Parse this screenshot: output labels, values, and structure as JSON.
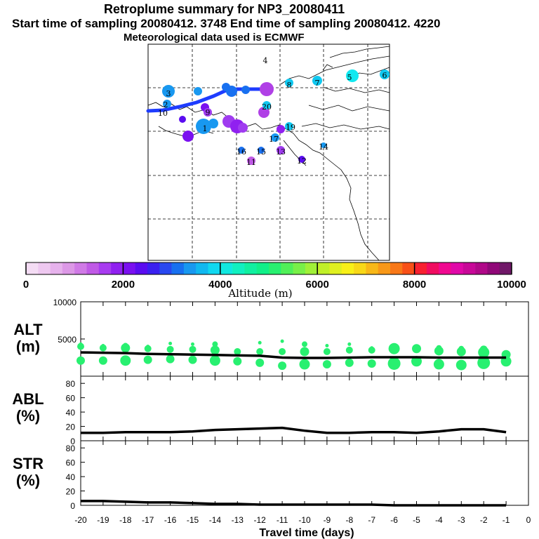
{
  "header": {
    "title": "Retroplume summary for NP3_20080411",
    "sampling_line": "Start time of sampling 20080412.  3748     End time of sampling 20080412.  4220",
    "met_line": "Meteorological data used is ECMWF"
  },
  "colorbar": {
    "title": "Altitude (m)",
    "tick_labels": [
      "0",
      "2000",
      "4000",
      "6000",
      "8000",
      "10000"
    ],
    "colors": [
      "#f4dcf4",
      "#eec8f0",
      "#e6b2ec",
      "#dc98e6",
      "#d07ae6",
      "#c05ae6",
      "#a83cf0",
      "#9020f0",
      "#7a10f0",
      "#5a0cf0",
      "#3a20f0",
      "#2848f0",
      "#1870f0",
      "#1898f0",
      "#10b8f0",
      "#10d8f0",
      "#10e8e0",
      "#10f0c0",
      "#10f0a0",
      "#10f088",
      "#28f070",
      "#50f058",
      "#78f048",
      "#a0f038",
      "#c0f028",
      "#e0f020",
      "#f8f018",
      "#f8d818",
      "#f8b818",
      "#f89818",
      "#f87818",
      "#f85018",
      "#f82030",
      "#f00c60",
      "#f00890",
      "#e008a8",
      "#c80898",
      "#b00888",
      "#900878",
      "#701868"
    ]
  },
  "map": {
    "labels": [
      {
        "id": "map-label-4",
        "text": "4"
      },
      {
        "id": "map-label-8",
        "text": "8"
      },
      {
        "id": "map-label-7",
        "text": "7"
      },
      {
        "id": "map-label-5",
        "text": "5"
      },
      {
        "id": "map-label-6",
        "text": "6"
      },
      {
        "id": "map-label-3",
        "text": "3"
      },
      {
        "id": "map-label-2",
        "text": "2"
      },
      {
        "id": "map-label-1",
        "text": "1"
      },
      {
        "id": "map-label-20",
        "text": "20"
      },
      {
        "id": "map-label-19",
        "text": "19"
      },
      {
        "id": "map-label-17",
        "text": "17"
      },
      {
        "id": "map-label-16",
        "text": "16"
      },
      {
        "id": "map-label-15",
        "text": "15"
      },
      {
        "id": "map-label-14",
        "text": "14"
      },
      {
        "id": "map-label-13",
        "text": "13"
      },
      {
        "id": "map-label-12",
        "text": "12"
      },
      {
        "id": "map-label-11",
        "text": "11"
      },
      {
        "id": "map-label-10",
        "text": "10"
      },
      {
        "id": "map-label-9",
        "text": "9"
      }
    ]
  },
  "chart_data": [
    {
      "type": "scatter",
      "panel": "ALT",
      "ylabel": "ALT\n(m)",
      "ylabel_lines": [
        "ALT",
        "(m)"
      ],
      "ylim": [
        0,
        10000
      ],
      "y_tick_labels": [
        "10000",
        "5000"
      ],
      "x": [
        -20,
        -19,
        -18,
        -17,
        -16,
        -15,
        -14,
        -13,
        -12,
        -11,
        -10,
        -9,
        -8,
        -7,
        -6,
        -5,
        -4,
        -3,
        -2,
        -1
      ],
      "series": [
        {
          "name": "mean altitude",
          "values": [
            3200,
            3150,
            3100,
            3000,
            2950,
            2900,
            2850,
            2800,
            2750,
            2500,
            2450,
            2450,
            2500,
            2550,
            2550,
            2550,
            2500,
            2500,
            2500,
            2500
          ]
        },
        {
          "name": "cluster upper",
          "values": [
            4000,
            3800,
            3800,
            3700,
            3600,
            3600,
            3500,
            3300,
            3300,
            3300,
            3300,
            3300,
            3500,
            3500,
            3700,
            3700,
            3400,
            3300,
            3200,
            2900
          ]
        },
        {
          "name": "cluster lower",
          "values": [
            2100,
            2100,
            2100,
            2200,
            2300,
            2200,
            2100,
            2000,
            1800,
            1400,
            1600,
            1600,
            1800,
            1700,
            1700,
            2000,
            1600,
            1500,
            1800,
            2000
          ]
        },
        {
          "name": "cluster top",
          "values": [
            4300,
            4100,
            4100,
            4000,
            4400,
            4300,
            4300,
            3400,
            4500,
            4700,
            4300,
            4100,
            4300,
            3800,
            3900,
            3800,
            3800,
            3700,
            3600,
            3100
          ]
        }
      ]
    },
    {
      "type": "line",
      "panel": "ABL",
      "ylabel_lines": [
        "ABL",
        "(%)"
      ],
      "ylim": [
        0,
        90
      ],
      "y_tick_labels": [
        "80",
        "60",
        "40",
        "20",
        "0"
      ],
      "x": [
        -20,
        -19,
        -18,
        -17,
        -16,
        -15,
        -14,
        -13,
        -12,
        -11,
        -10,
        -9,
        -8,
        -7,
        -6,
        -5,
        -4,
        -3,
        -2,
        -1
      ],
      "values": [
        11,
        11,
        12,
        12,
        12,
        13,
        15,
        16,
        17,
        18,
        14,
        11,
        11,
        12,
        12,
        11,
        13,
        16,
        16,
        12
      ]
    },
    {
      "type": "line",
      "panel": "STR",
      "ylabel_lines": [
        "STR",
        "(%)"
      ],
      "ylim": [
        0,
        90
      ],
      "y_tick_labels": [
        "80",
        "60",
        "40",
        "20",
        "0"
      ],
      "x": [
        -20,
        -19,
        -18,
        -17,
        -16,
        -15,
        -14,
        -13,
        -12,
        -11,
        -10,
        -9,
        -8,
        -7,
        -6,
        -5,
        -4,
        -3,
        -2,
        -1
      ],
      "values": [
        6,
        6,
        5,
        4,
        4,
        3,
        2,
        2,
        1,
        1,
        1,
        1,
        1,
        1,
        0,
        0,
        0,
        0,
        0,
        0
      ]
    }
  ],
  "x_axis": {
    "title": "Travel time (days)",
    "tick_labels": [
      "-20",
      "-19",
      "-18",
      "-17",
      "-16",
      "-15",
      "-14",
      "-13",
      "-12",
      "-11",
      "-10",
      "-9",
      "-8",
      "-7",
      "-6",
      "-5",
      "-4",
      "-3",
      "-2",
      "-1",
      "0"
    ]
  }
}
